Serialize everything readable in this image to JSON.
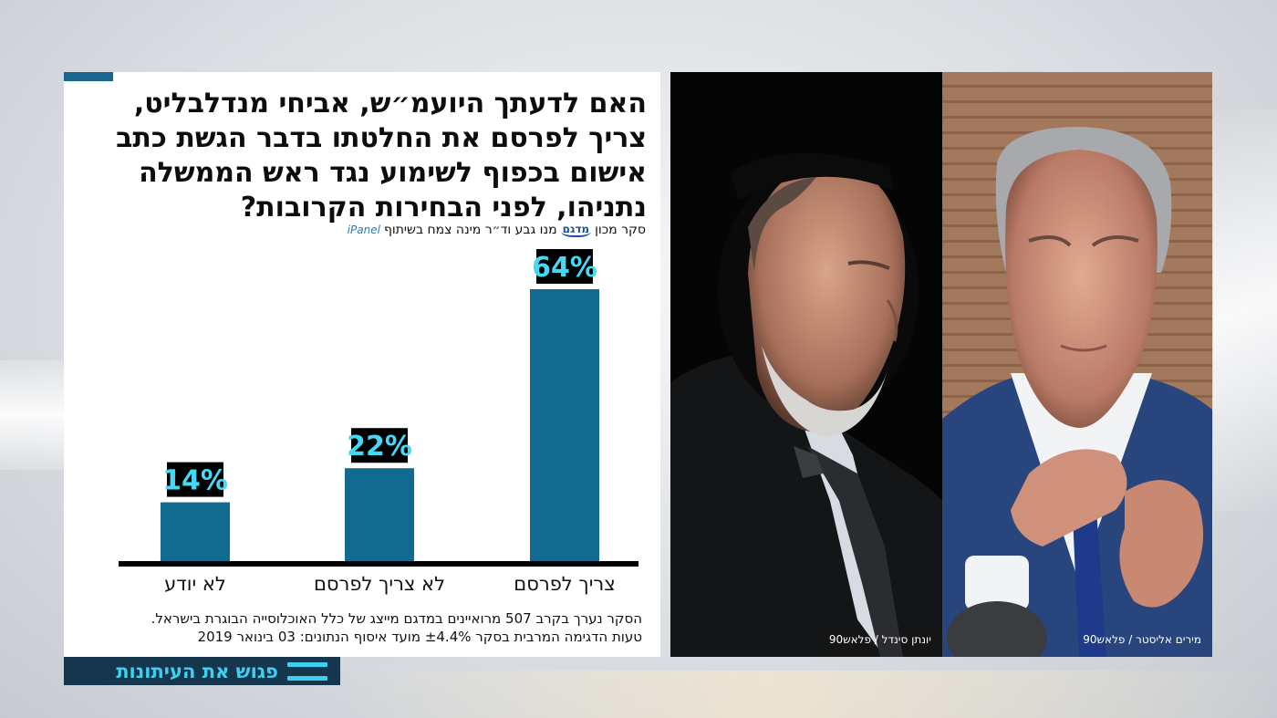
{
  "question": "האם לדעתך היועמ״ש, אביחי מנדלבליט, צריך לפרסם את החלטתו בדבר הגשת כתב אישום בכפוף לשימוע נגד ראש הממשלה נתניהו, לפני הבחירות הקרובות?",
  "source": {
    "text": "סקר מכון",
    "logo_madagam": "מדגם",
    "text2": "מנו גבע וד״ר מינה צמח בשיתוף",
    "logo_ipanel": "iPanel"
  },
  "footnote": {
    "line1": "הסקר נערך בקרב 507 מרואיינים במדגם מייצג של כלל האוכלוסייה הבוגרת בישראל.",
    "line2": "טעות הדגימה המרבית בסקר ±4.4% מועד איסוף הנתונים: 03 בינואר 2019"
  },
  "strip_label": "פגוש את העיתונות",
  "photo_credits": {
    "left": "יונתן סינדל / פלאש90",
    "right": "מירים אליסטר / פלאש90"
  },
  "colors": {
    "bar": "#126a91",
    "value_label_bg": "#000000",
    "value_label_text": "#45d8f4",
    "strip_bg": "#16364e",
    "strip_text": "#3fd0f0"
  },
  "chart_data": {
    "type": "bar",
    "categories": [
      "צריך לפרסם",
      "לא צריך לפרסם",
      "לא יודע"
    ],
    "values": [
      64,
      22,
      14
    ],
    "value_labels": [
      "64%",
      "22%",
      "14%"
    ],
    "unit": "%",
    "ylim": [
      0,
      64
    ],
    "grid": false,
    "legend": "none",
    "order": "right-to-left"
  }
}
